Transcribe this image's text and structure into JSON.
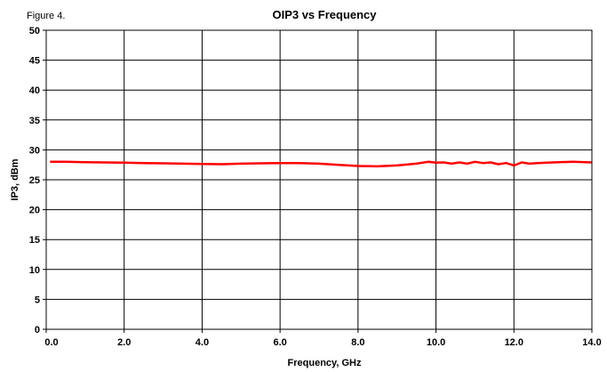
{
  "figure_label": "Figure 4.",
  "chart_data": {
    "type": "line",
    "title": "OIP3 vs Frequency",
    "xlabel": "Frequency, GHz",
    "ylabel": "IP3, dBm",
    "xlim": [
      0,
      14
    ],
    "ylim": [
      0,
      50
    ],
    "x_ticks": [
      0,
      2,
      4,
      6,
      8,
      10,
      12,
      14
    ],
    "x_tick_labels": [
      "0.0",
      "2.0",
      "4.0",
      "6.0",
      "8.0",
      "10.0",
      "12.0",
      "14.0"
    ],
    "y_ticks": [
      0,
      5,
      10,
      15,
      20,
      25,
      30,
      35,
      40,
      45,
      50
    ],
    "y_tick_labels": [
      "0",
      "5",
      "10",
      "15",
      "20",
      "25",
      "30",
      "35",
      "40",
      "45",
      "50"
    ],
    "grid": true,
    "series": [
      {
        "color": "#ff0000",
        "x": [
          0.1,
          0.5,
          1.0,
          1.5,
          2.0,
          2.5,
          3.0,
          3.5,
          4.0,
          4.5,
          5.0,
          5.5,
          6.0,
          6.5,
          7.0,
          7.5,
          8.0,
          8.5,
          9.0,
          9.5,
          9.8,
          10.0,
          10.2,
          10.4,
          10.6,
          10.8,
          11.0,
          11.2,
          11.4,
          11.6,
          11.8,
          12.0,
          12.2,
          12.4,
          12.6,
          13.0,
          13.5,
          14.0
        ],
        "values": [
          28.0,
          28.0,
          27.95,
          27.9,
          27.85,
          27.8,
          27.75,
          27.7,
          27.65,
          27.6,
          27.7,
          27.75,
          27.8,
          27.8,
          27.7,
          27.5,
          27.3,
          27.25,
          27.4,
          27.7,
          28.0,
          27.85,
          27.9,
          27.7,
          27.9,
          27.7,
          28.0,
          27.8,
          27.9,
          27.6,
          27.8,
          27.4,
          27.9,
          27.7,
          27.8,
          27.9,
          28.0,
          27.9
        ]
      }
    ]
  }
}
